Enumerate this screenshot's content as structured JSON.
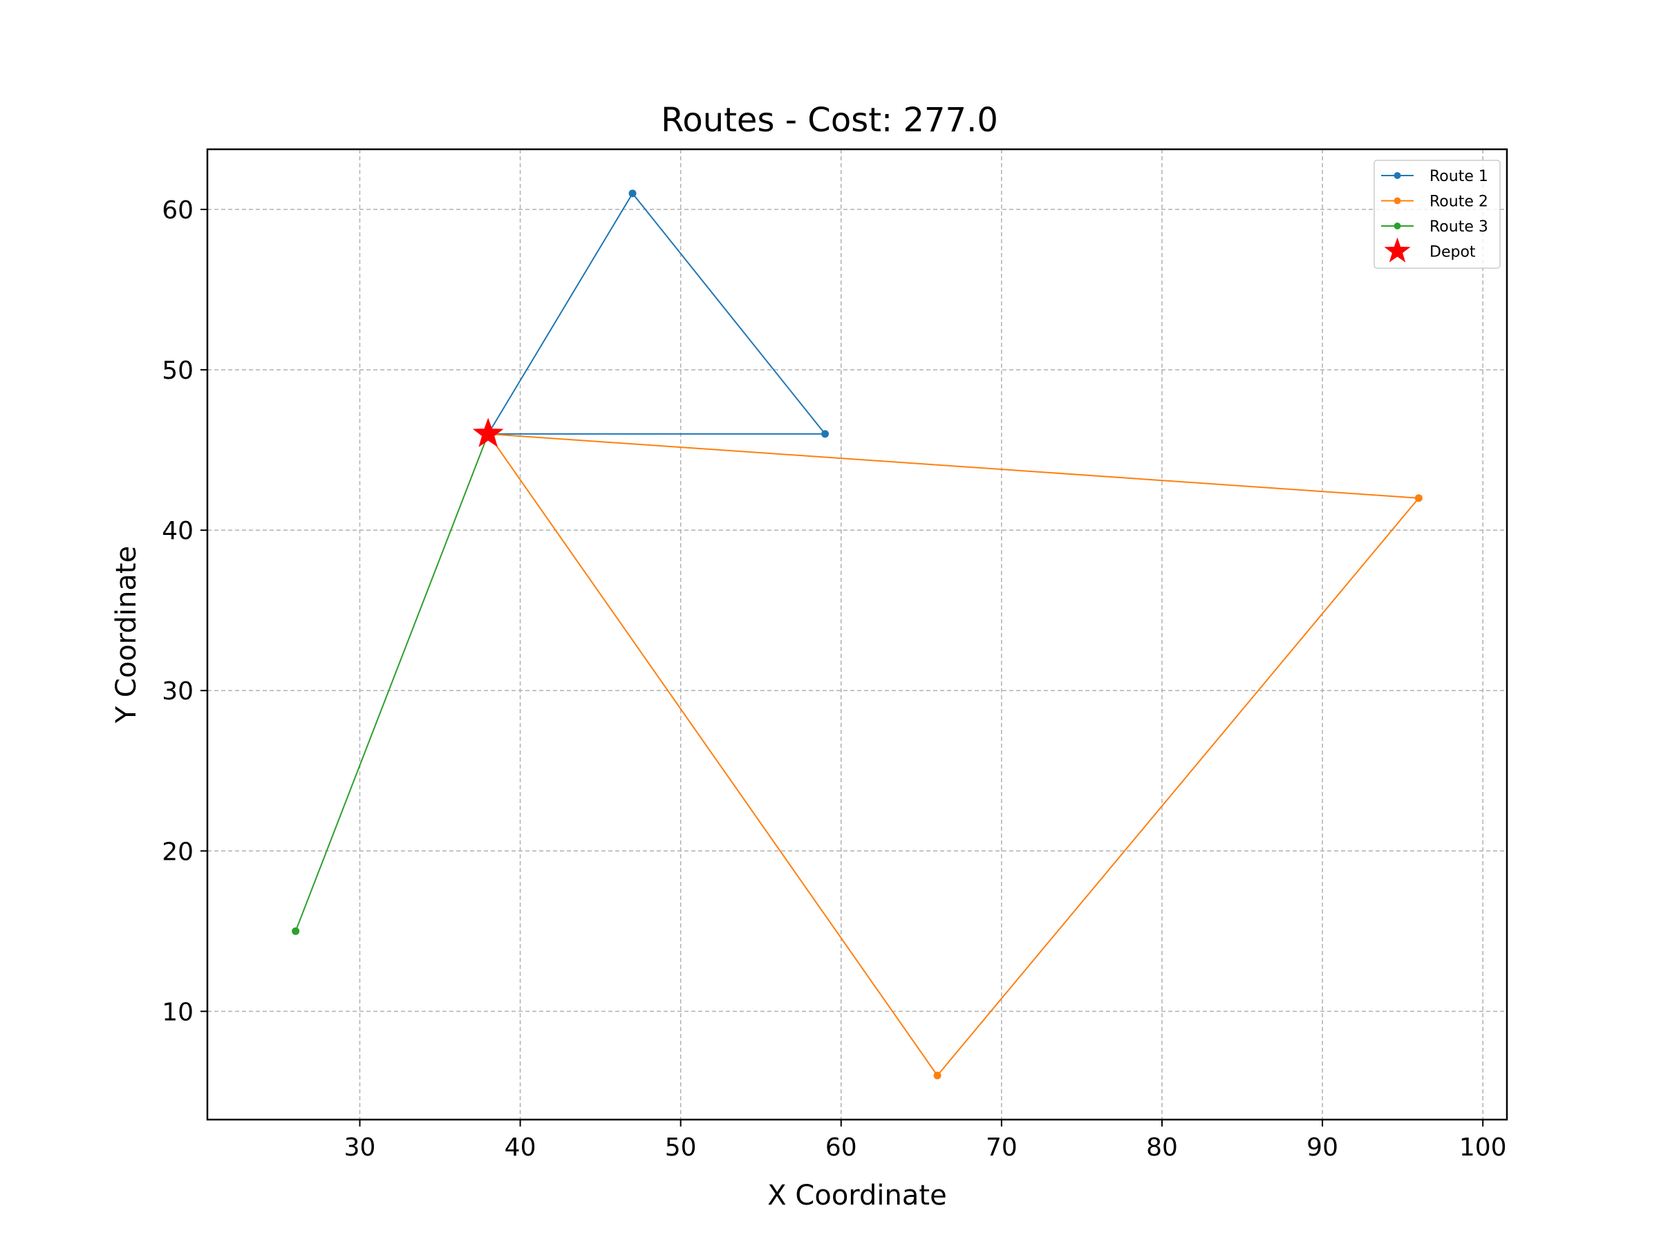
{
  "chart_data": {
    "type": "line",
    "title": "Routes - Cost: 277.0",
    "xlabel": "X Coordinate",
    "ylabel": "Y Coordinate",
    "xlim": [
      20.5,
      101.5
    ],
    "ylim": [
      3.25,
      63.75
    ],
    "xticks": [
      30,
      40,
      50,
      60,
      70,
      80,
      90,
      100
    ],
    "yticks": [
      10,
      20,
      30,
      40,
      50,
      60
    ],
    "grid": true,
    "legend_position": "top-right",
    "series": [
      {
        "name": "Route 1",
        "color": "#1f77b4",
        "points": [
          [
            38,
            46
          ],
          [
            47,
            61
          ],
          [
            59,
            46
          ],
          [
            38,
            46
          ]
        ]
      },
      {
        "name": "Route 2",
        "color": "#ff7f0e",
        "points": [
          [
            38,
            46
          ],
          [
            96,
            42
          ],
          [
            66,
            6
          ],
          [
            38,
            46
          ]
        ]
      },
      {
        "name": "Route 3",
        "color": "#2ca02c",
        "points": [
          [
            38,
            46
          ],
          [
            26,
            15
          ],
          [
            38,
            46
          ]
        ]
      }
    ],
    "depot": {
      "name": "Depot",
      "color": "#ff0000",
      "x": 38,
      "y": 46,
      "marker": "star"
    }
  }
}
